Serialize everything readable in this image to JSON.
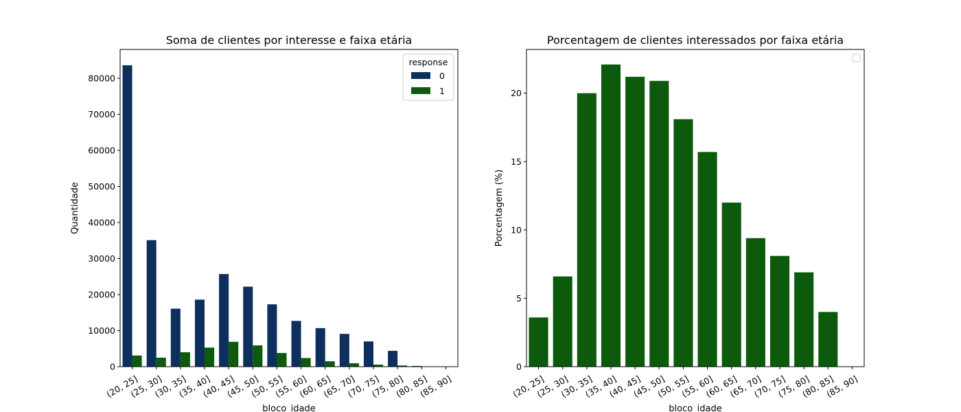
{
  "figure": {
    "background": "#ffffff"
  },
  "colors": {
    "response_0": "#0d2f5e",
    "response_1": "#0d5a0d",
    "pct_bar": "#0d5a0d"
  },
  "chart_data": [
    {
      "type": "bar",
      "title": "Soma de clientes por interesse e faixa etária",
      "xlabel": "bloco_idade",
      "ylabel": "Quantidade",
      "categories": [
        "(20, 25]",
        "(25, 30]",
        "(30, 35]",
        "(35, 40]",
        "(40, 45]",
        "(45, 50]",
        "(50, 55]",
        "(55, 60]",
        "(60, 65]",
        "(65, 70]",
        "(70, 75]",
        "(75, 80]",
        "(80, 85]",
        "(85, 90]"
      ],
      "series": [
        {
          "name": "0",
          "color": "#0d2f5e",
          "values": [
            83600,
            35100,
            16100,
            18600,
            25700,
            22200,
            17300,
            12700,
            10700,
            9100,
            7000,
            4400,
            200,
            0
          ]
        },
        {
          "name": "1",
          "color": "#0d5a0d",
          "values": [
            3100,
            2500,
            4000,
            5300,
            6900,
            5900,
            3800,
            2400,
            1500,
            950,
            570,
            330,
            10,
            0
          ]
        }
      ],
      "ylim": [
        0,
        88000
      ],
      "yticks": [
        0,
        10000,
        20000,
        30000,
        40000,
        50000,
        60000,
        70000,
        80000
      ],
      "legend": {
        "title": "response",
        "placement": "top-right"
      },
      "grid": false
    },
    {
      "type": "bar",
      "title": "Porcentagem de clientes interessados por faixa etária",
      "xlabel": "bloco_idade",
      "ylabel": "Porcentagem (%)",
      "categories": [
        "(20, 25]",
        "(25, 30]",
        "(30, 35]",
        "(35, 40]",
        "(40, 45]",
        "(45, 50]",
        "(50, 55]",
        "(55, 60]",
        "(60, 65]",
        "(65, 70]",
        "(70, 75]",
        "(75, 80]",
        "(80, 85]",
        "(85, 90]"
      ],
      "series": [
        {
          "color": "#0d5a0d",
          "values": [
            3.6,
            6.6,
            20.0,
            22.1,
            21.2,
            20.9,
            18.1,
            15.7,
            12.0,
            9.4,
            8.1,
            6.9,
            4.0,
            0
          ]
        }
      ],
      "ylim": [
        0,
        23.2
      ],
      "yticks": [
        0,
        5,
        10,
        15,
        20
      ],
      "legend": {
        "placement": "top-right",
        "empty": true
      },
      "grid": false
    }
  ]
}
